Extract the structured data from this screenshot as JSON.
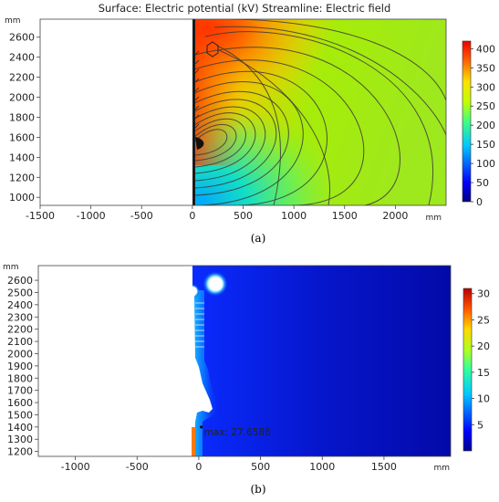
{
  "chart_data": [
    {
      "type": "heatmap",
      "title": "Surface: Electric potential (kV)  Streamline: Electric field",
      "caption": "(a)",
      "x_unit": "mm",
      "y_unit": "mm",
      "xlim": [
        -1500,
        2500
      ],
      "ylim": [
        920,
        2780
      ],
      "x_ticks": [
        "-1500",
        "-1000",
        "-500",
        "0",
        "500",
        "1000",
        "1500",
        "2000"
      ],
      "x_tick_values": [
        -1500,
        -1000,
        -500,
        0,
        500,
        1000,
        1500,
        2000
      ],
      "y_ticks": [
        "1000",
        "1200",
        "1400",
        "1600",
        "1800",
        "2000",
        "2200",
        "2400",
        "2600"
      ],
      "y_tick_values": [
        1000,
        1200,
        1400,
        1600,
        1800,
        2000,
        2200,
        2400,
        2600
      ],
      "colorbar": {
        "min": 0,
        "max": 420,
        "ticks": [
          "0",
          "50",
          "100",
          "150",
          "200",
          "250",
          "300",
          "350",
          "400"
        ],
        "tick_values": [
          0,
          50,
          100,
          150,
          200,
          250,
          300,
          350,
          400
        ]
      },
      "grid": false
    },
    {
      "type": "heatmap",
      "caption": "(b)",
      "x_unit": "mm",
      "y_unit": "mm",
      "xlim": [
        -1300,
        2040
      ],
      "ylim": [
        1160,
        2720
      ],
      "x_ticks": [
        "-1000",
        "-500",
        "0",
        "500",
        "1000",
        "1500"
      ],
      "x_tick_values": [
        -1000,
        -500,
        0,
        500,
        1000,
        1500
      ],
      "y_ticks": [
        "1200",
        "1300",
        "1400",
        "1500",
        "1600",
        "1700",
        "1800",
        "1900",
        "2000",
        "2100",
        "2200",
        "2300",
        "2400",
        "2500",
        "2600"
      ],
      "y_tick_values": [
        1200,
        1300,
        1400,
        1500,
        1600,
        1700,
        1800,
        1900,
        2000,
        2100,
        2200,
        2300,
        2400,
        2500,
        2600
      ],
      "colorbar": {
        "min": 0,
        "max": 31,
        "ticks": [
          "5",
          "10",
          "15",
          "20",
          "25",
          "30"
        ],
        "tick_values": [
          5,
          10,
          15,
          20,
          25,
          30
        ]
      },
      "annotation": "max: 27.6586",
      "annotation_point": [
        20,
        1400
      ],
      "grid": false
    }
  ]
}
